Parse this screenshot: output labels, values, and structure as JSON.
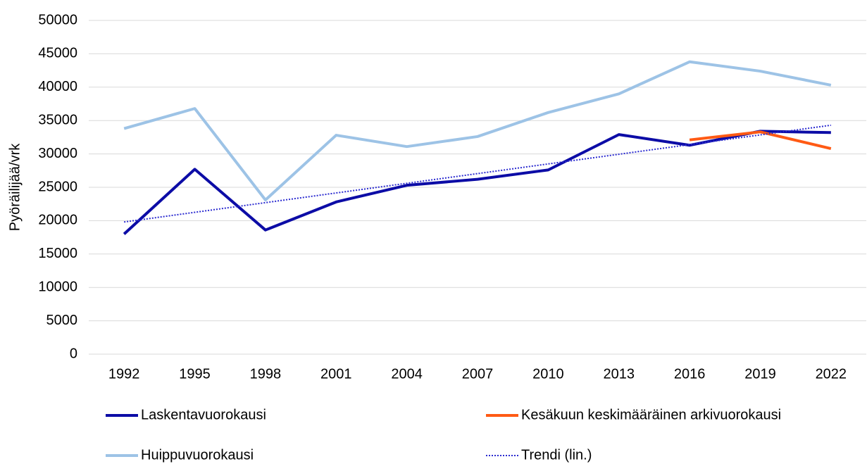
{
  "chart_data": {
    "type": "line",
    "y_label": "Pyöräilijää/vrk",
    "categories": [
      "1992",
      "1995",
      "1998",
      "2001",
      "2004",
      "2007",
      "2010",
      "2013",
      "2016",
      "2019",
      "2022"
    ],
    "series": [
      {
        "name": "Laskentavuorokausi",
        "color": "#0c0ca6",
        "style": "solid",
        "values": [
          18000,
          27700,
          18600,
          22800,
          25300,
          26200,
          27600,
          32900,
          31300,
          33400,
          33200
        ]
      },
      {
        "name": "Kesäkuun keskimääräinen arkivuorokausi",
        "color": "#ff5a14",
        "style": "solid",
        "values": [
          null,
          null,
          null,
          null,
          null,
          null,
          null,
          null,
          32100,
          33300,
          30800
        ]
      },
      {
        "name": "Huippuvuorokausi",
        "color": "#9dc3e6",
        "style": "solid",
        "values": [
          33800,
          36800,
          23100,
          32800,
          31100,
          32600,
          36200,
          39000,
          43800,
          42400,
          40300
        ]
      },
      {
        "name": "Trendi (lin.)",
        "color": "#2b2bd0",
        "style": "dotted",
        "values": [
          19800,
          21250,
          22700,
          24150,
          25600,
          27050,
          28500,
          29950,
          31400,
          32850,
          34300
        ]
      }
    ],
    "ylim": [
      0,
      50000
    ],
    "yticks": [
      0,
      5000,
      10000,
      15000,
      20000,
      25000,
      30000,
      35000,
      40000,
      45000,
      50000
    ],
    "grid": true
  }
}
